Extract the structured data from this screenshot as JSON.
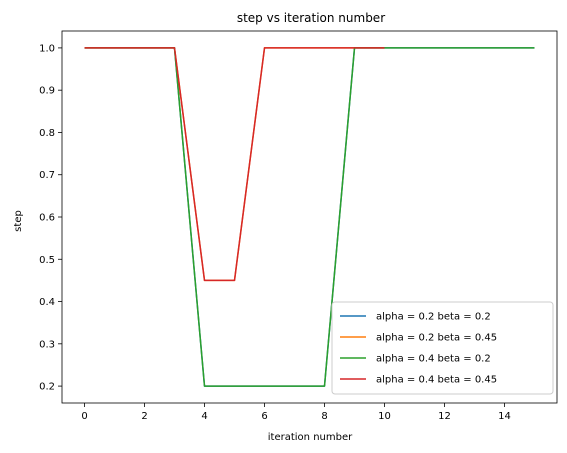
{
  "chart_data": {
    "type": "line",
    "title": "step vs iteration number",
    "xlabel": "iteration number",
    "ylabel": "step",
    "xlim": [
      -0.75,
      15.75
    ],
    "ylim": [
      0.16,
      1.04
    ],
    "xticks": [
      0,
      2,
      4,
      6,
      8,
      10,
      12,
      14
    ],
    "yticks": [
      0.2,
      0.3,
      0.4,
      0.5,
      0.6,
      0.7,
      0.8,
      0.9,
      1.0
    ],
    "grid": false,
    "legend_position": "bottom-right",
    "series": [
      {
        "name": "alpha = 0.2 beta = 0.2",
        "color": "#1f77b4",
        "x": [
          0,
          1,
          2,
          3,
          4,
          5,
          6,
          7,
          8,
          9,
          10,
          11,
          12,
          13,
          14,
          15
        ],
        "y": [
          1,
          1,
          1,
          1,
          0.2,
          0.2,
          0.2,
          0.2,
          0.2,
          1,
          1,
          1,
          1,
          1,
          1,
          1
        ]
      },
      {
        "name": "alpha = 0.2 beta = 0.45",
        "color": "#ff7f0e",
        "x": [
          0,
          1,
          2,
          3,
          4,
          5,
          6,
          7,
          8,
          9,
          10
        ],
        "y": [
          1,
          1,
          1,
          1,
          0.45,
          0.45,
          1,
          1,
          1,
          1,
          1
        ]
      },
      {
        "name": "alpha = 0.4 beta = 0.2",
        "color": "#2ca02c",
        "x": [
          0,
          1,
          2,
          3,
          4,
          5,
          6,
          7,
          8,
          9,
          10,
          11,
          12,
          13,
          14,
          15
        ],
        "y": [
          1,
          1,
          1,
          1,
          0.2,
          0.2,
          0.2,
          0.2,
          0.2,
          1,
          1,
          1,
          1,
          1,
          1,
          1
        ]
      },
      {
        "name": "alpha = 0.4 beta = 0.45",
        "color": "#d62728",
        "x": [
          0,
          1,
          2,
          3,
          4,
          5,
          6,
          7,
          8,
          9,
          10
        ],
        "y": [
          1,
          1,
          1,
          1,
          0.45,
          0.45,
          1,
          1,
          1,
          1,
          1
        ]
      }
    ]
  }
}
